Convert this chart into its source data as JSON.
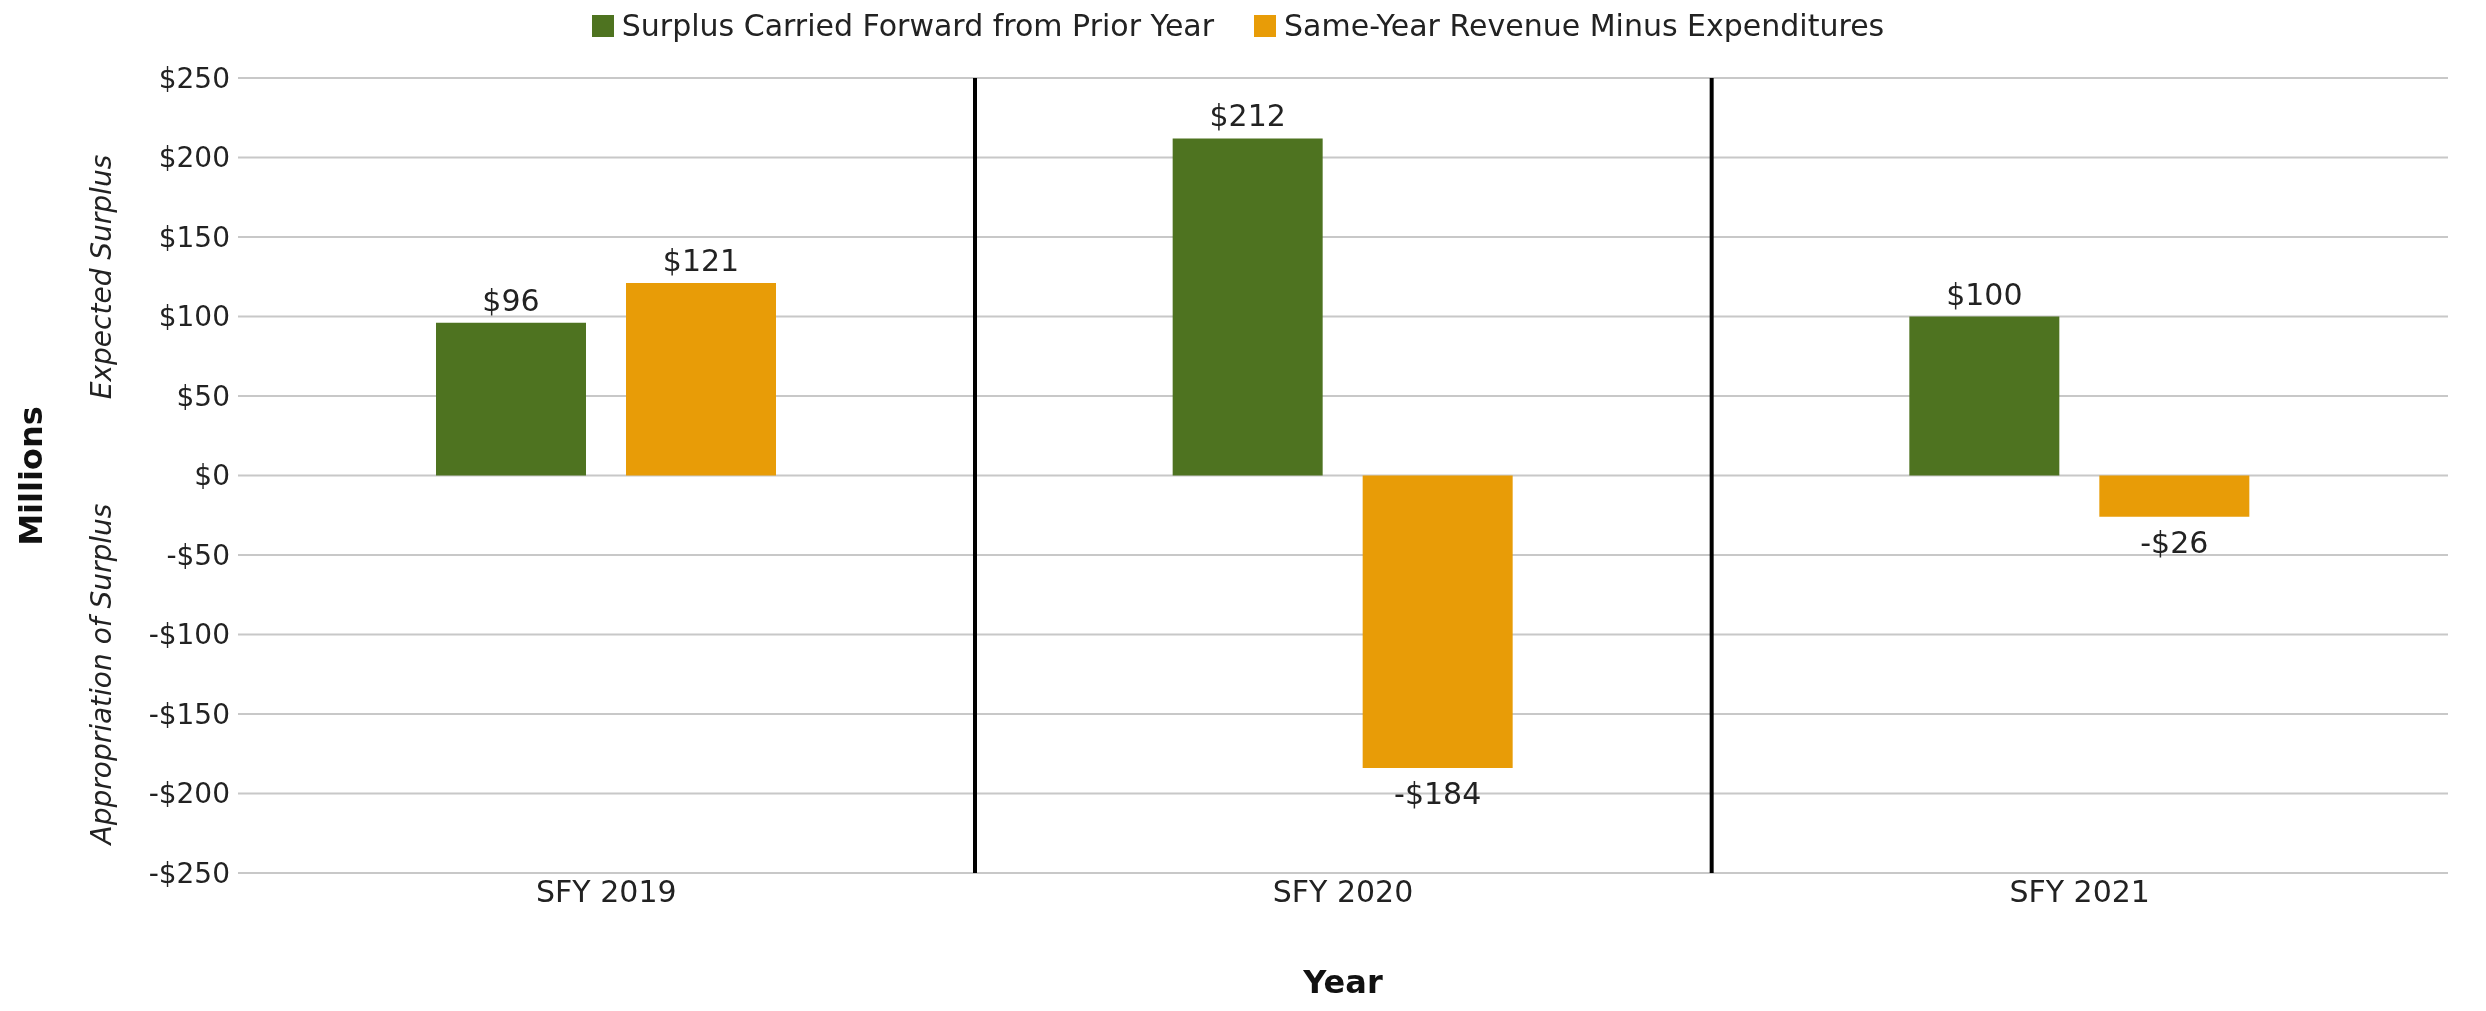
{
  "chart_data": {
    "type": "bar",
    "xlabel": "Year",
    "ylabel": "Millions",
    "annotations": [
      "Expected Surplus",
      "Appropriation of Surplus"
    ],
    "categories": [
      "SFY 2019",
      "SFY 2020",
      "SFY 2021"
    ],
    "series": [
      {
        "name": "Surplus Carried Forward from Prior Year",
        "color": "#4e7320",
        "values": [
          96,
          212,
          100
        ],
        "value_labels": [
          "$96",
          "$212",
          "$100"
        ]
      },
      {
        "name": "Same-Year Revenue Minus Expenditures",
        "color": "#e89c07",
        "values": [
          121,
          -184,
          -26
        ],
        "value_labels": [
          "$121",
          "-$184",
          "-$26"
        ]
      }
    ],
    "ylim": [
      -250,
      250
    ],
    "yticks": [
      {
        "value": -250,
        "label": "-$250"
      },
      {
        "value": -200,
        "label": "-$200"
      },
      {
        "value": -150,
        "label": "-$150"
      },
      {
        "value": -100,
        "label": "-$100"
      },
      {
        "value": -50,
        "label": "-$50"
      },
      {
        "value": 0,
        "label": "$0"
      },
      {
        "value": 50,
        "label": "$50"
      },
      {
        "value": 100,
        "label": "$100"
      },
      {
        "value": 150,
        "label": "$150"
      },
      {
        "value": 200,
        "label": "$200"
      },
      {
        "value": 250,
        "label": "$250"
      }
    ],
    "grid": "y",
    "legend": "top"
  }
}
